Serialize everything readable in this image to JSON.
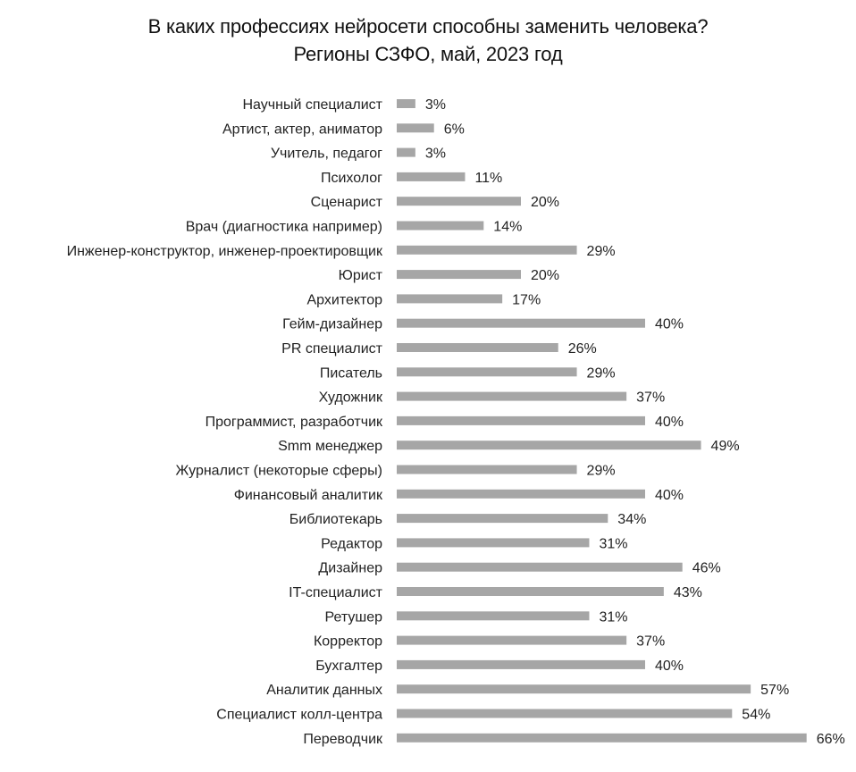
{
  "chart_data": {
    "type": "bar",
    "orientation": "horizontal",
    "title": "В каких профессиях нейросети способны заменить человека?",
    "subtitle": "Регионы СЗФО, май, 2023 год",
    "bar_color": "#a6a6a6",
    "value_suffix": "%",
    "grid": false,
    "legend": "none",
    "xlim": [
      0,
      66
    ],
    "categories": [
      "Научный специалист",
      "Артист, актер, аниматор",
      "Учитель, педагог",
      "Психолог",
      "Сценарист",
      "Врач (диагностика например)",
      "Инженер-конструктор, инженер-проектировщик",
      "Юрист",
      "Архитектор",
      "Гейм-дизайнер",
      "PR специалист",
      "Писатель",
      "Художник",
      "Программист, разработчик",
      "Smm менеджер",
      "Журналист (некоторые сферы)",
      "Финансовый аналитик",
      "Библиотекарь",
      "Редактор",
      "Дизайнер",
      "IT-специалист",
      "Ретушер",
      "Корректор",
      "Бухгалтер",
      "Аналитик данных",
      "Специалист колл-центра",
      "Переводчик"
    ],
    "values": [
      3,
      6,
      3,
      11,
      20,
      14,
      29,
      20,
      17,
      40,
      26,
      29,
      37,
      40,
      49,
      29,
      40,
      34,
      31,
      46,
      43,
      31,
      37,
      40,
      57,
      54,
      66
    ]
  }
}
